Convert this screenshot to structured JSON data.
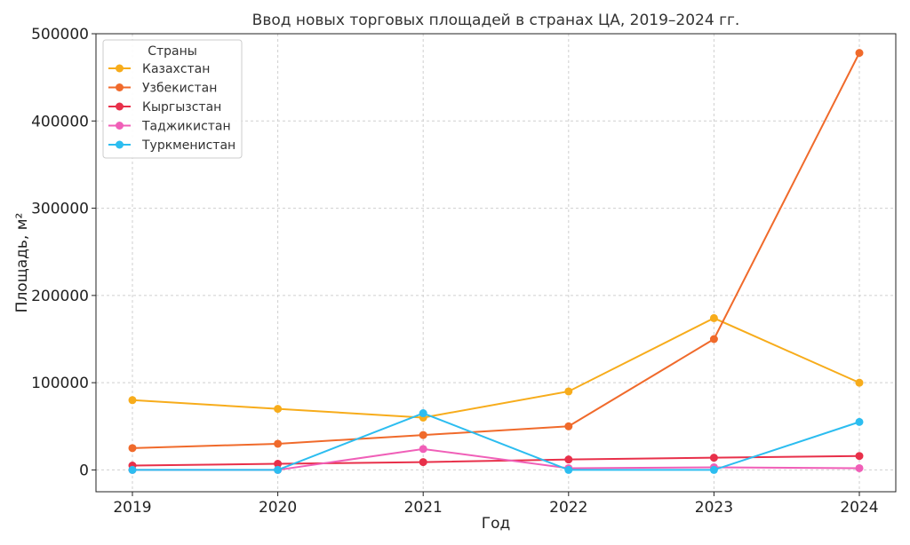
{
  "chart_data": {
    "type": "line",
    "title": "Ввод новых торговых площадей в странах ЦА, 2019–2024 гг.",
    "xlabel": "Год",
    "ylabel": "Площадь, м²",
    "x": [
      "2019",
      "2020",
      "2021",
      "2022",
      "2023",
      "2024"
    ],
    "ylim": [
      -25000,
      500000
    ],
    "yticks": [
      0,
      100000,
      200000,
      300000,
      400000,
      500000
    ],
    "ytick_labels": [
      "0",
      "100000",
      "200000",
      "300000",
      "400000",
      "500000"
    ],
    "grid": true,
    "legend": {
      "title": "Страны",
      "position": "top-left"
    },
    "series": [
      {
        "name": "Казахстан",
        "color": "#f7ac1b",
        "values": [
          80000,
          70000,
          60000,
          90000,
          174000,
          100000
        ]
      },
      {
        "name": "Узбекистан",
        "color": "#f06a2b",
        "values": [
          25000,
          30000,
          40000,
          50000,
          150000,
          478000
        ]
      },
      {
        "name": "Кыргызстан",
        "color": "#e8304a",
        "values": [
          5000,
          7000,
          9000,
          12000,
          14000,
          16000
        ]
      },
      {
        "name": "Таджикистан",
        "color": "#f05fb8",
        "values": [
          0,
          0,
          24000,
          2000,
          3000,
          2000
        ]
      },
      {
        "name": "Туркменистан",
        "color": "#2cbdf0",
        "values": [
          0,
          0,
          65000,
          0,
          0,
          55000
        ]
      }
    ]
  }
}
